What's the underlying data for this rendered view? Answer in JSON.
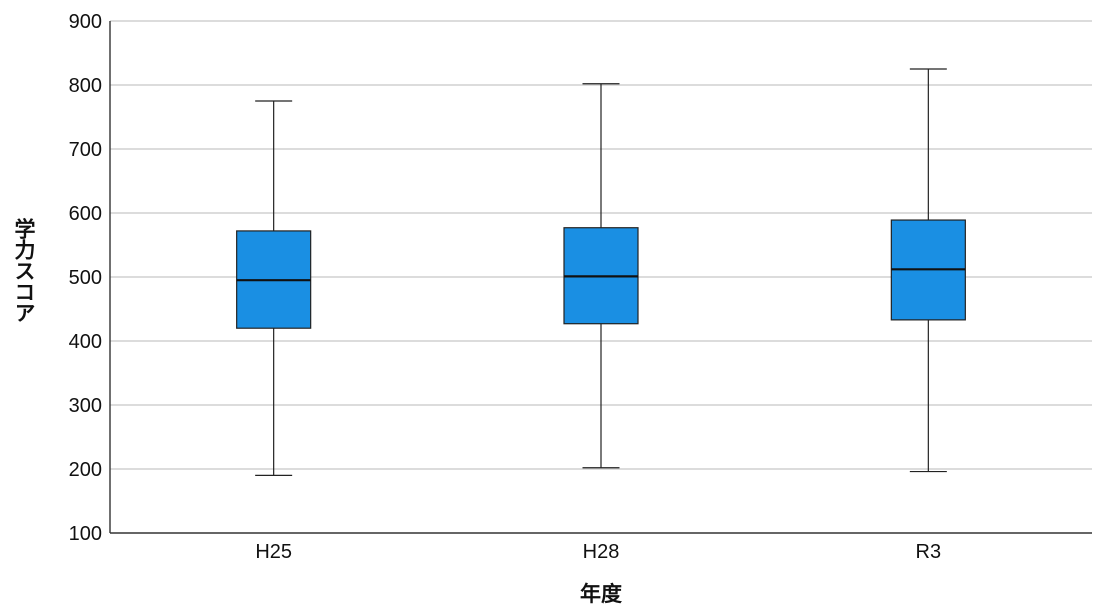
{
  "chart_data": {
    "type": "boxplot",
    "title": "",
    "xlabel": "年度",
    "ylabel": "学力スコア",
    "ylim": [
      100,
      900
    ],
    "yticks": [
      "100",
      "200",
      "300",
      "400",
      "500",
      "600",
      "700",
      "800",
      "900"
    ],
    "grid": true,
    "categories": [
      "H25",
      "H28",
      "R3"
    ],
    "boxes": [
      {
        "category": "H25",
        "min": 190,
        "q1": 420,
        "median": 495,
        "q3": 572,
        "max": 775
      },
      {
        "category": "H28",
        "min": 202,
        "q1": 427,
        "median": 501,
        "q3": 577,
        "max": 802
      },
      {
        "category": "R3",
        "min": 196,
        "q1": 433,
        "median": 512,
        "q3": 589,
        "max": 825
      }
    ],
    "colors": {
      "box_fill": "#1a8fe3",
      "grid": "#c8c8c8"
    }
  }
}
